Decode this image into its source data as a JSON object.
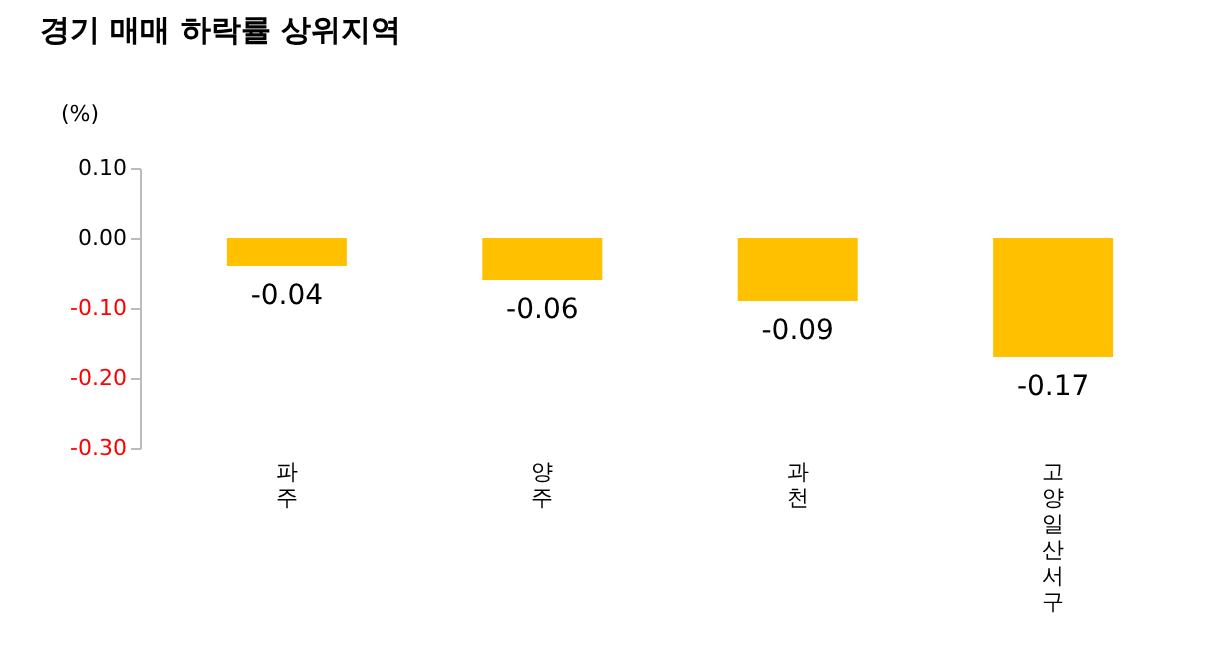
{
  "chart_data": {
    "type": "bar",
    "title": "경기 매매 하락률 상위지역",
    "ylabel": "(%)",
    "categories": [
      "파주",
      "양주",
      "과천",
      "고양 일산서구"
    ],
    "values": [
      -0.04,
      -0.06,
      -0.09,
      -0.17
    ],
    "color": "#ffc000",
    "ylim": [
      -0.3,
      0.1
    ],
    "yticks": [
      {
        "value": 0.1,
        "label": "0.10"
      },
      {
        "value": 0.0,
        "label": "0.00"
      },
      {
        "value": -0.1,
        "label": "-0.10"
      },
      {
        "value": -0.2,
        "label": "-0.20"
      },
      {
        "value": -0.3,
        "label": "-0.30"
      }
    ],
    "data_labels": true,
    "grid": false
  }
}
